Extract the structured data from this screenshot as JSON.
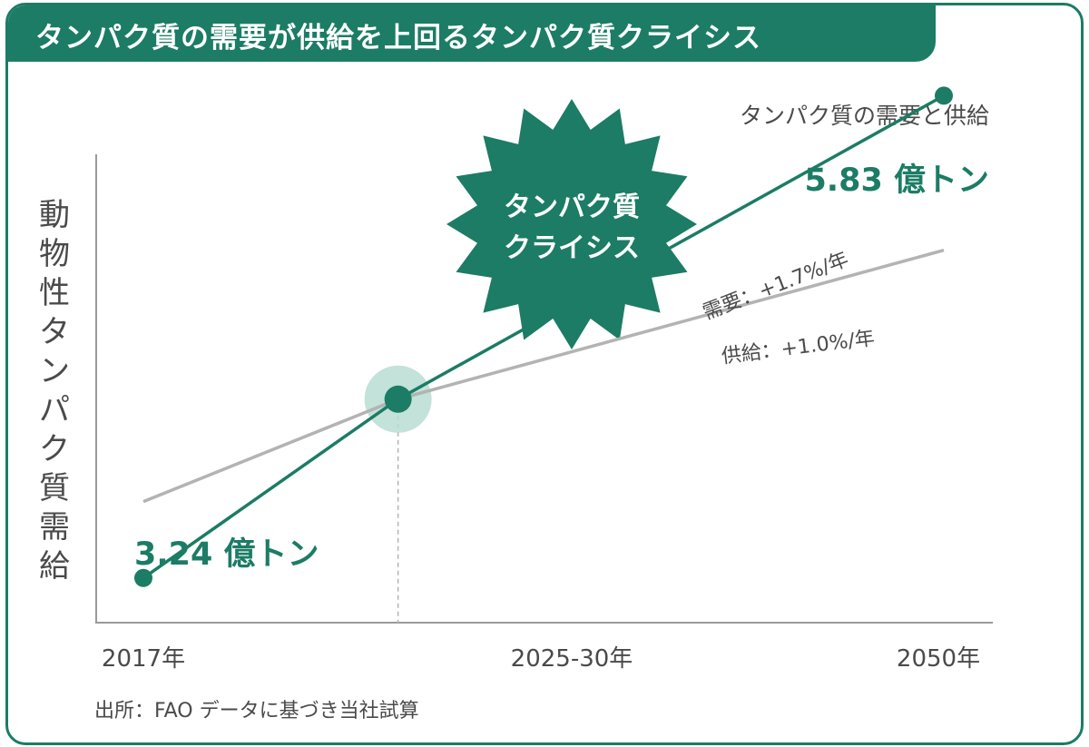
{
  "title": "タンパク質の需要が供給を上回るタンパク質クライシス",
  "source": "出所：FAO データに基づき当社試算",
  "colors": {
    "accent": "#1c7c65",
    "supply": "#b3b3b3",
    "halo": "#b9ddd3",
    "text": "#4a4a4a"
  },
  "chart_data": {
    "type": "line",
    "title": "タンパク質の需要と供給",
    "ylabel": "動物性タンパク質需給",
    "x_ticks": [
      "2017年",
      "2025-30年",
      "2050年"
    ],
    "series": [
      {
        "name": "需要",
        "rate_label": "需要：+1.7%/年",
        "x": [
          2017,
          2027.5,
          2050
        ],
        "values": [
          3.24,
          4.2,
          5.83
        ],
        "start_label": "3.24 億トン",
        "end_label": "5.83 億トン",
        "color": "#1c7c65"
      },
      {
        "name": "供給",
        "rate_label": "供給：+1.0%/年",
        "x": [
          2017,
          2027.5,
          2050
        ],
        "values": [
          3.65,
          4.2,
          5.0
        ],
        "color": "#b3b3b3"
      }
    ],
    "badge": [
      "タンパク質",
      "クライシス"
    ],
    "xlim": [
      2017,
      2050
    ],
    "ylim": [
      3.0,
      6.1
    ],
    "grid": false
  }
}
